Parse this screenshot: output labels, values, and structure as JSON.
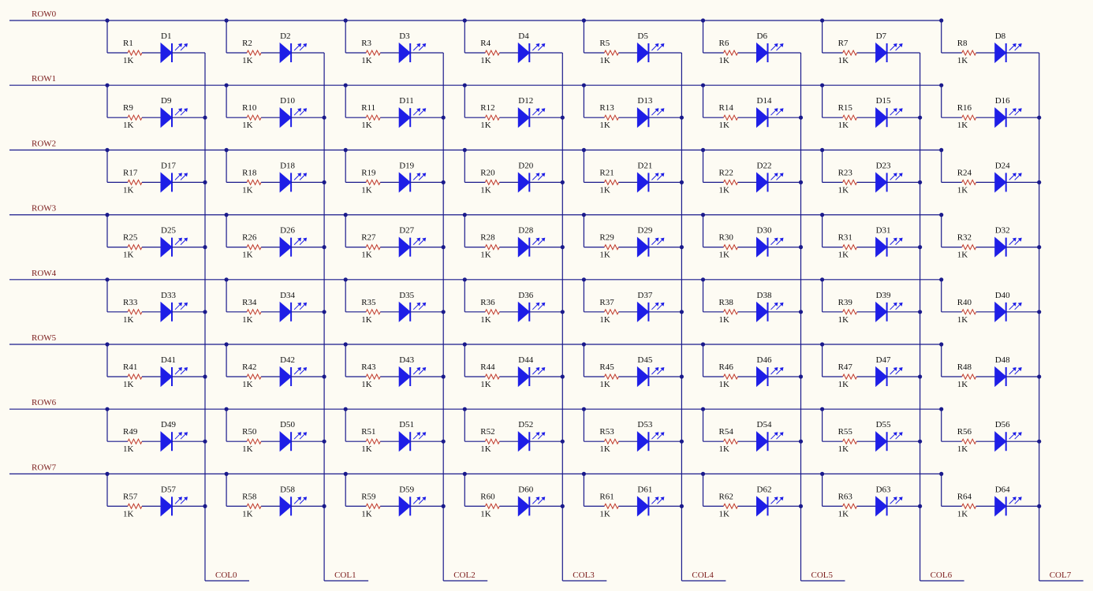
{
  "rows": [
    "ROW0",
    "ROW1",
    "ROW2",
    "ROW3",
    "ROW4",
    "ROW5",
    "ROW6",
    "ROW7"
  ],
  "cols": [
    "COL0",
    "COL1",
    "COL2",
    "COL3",
    "COL4",
    "COL5",
    "COL6",
    "COL7"
  ],
  "resistor_prefix": "R",
  "led_prefix": "D",
  "resistor_value": "1K",
  "colors": {
    "background": "#fdfbf3",
    "wire": "#1a1a8c",
    "led": "#1e1ee6",
    "resistor": "#c0392b",
    "net_label": "#7a1a1a"
  }
}
